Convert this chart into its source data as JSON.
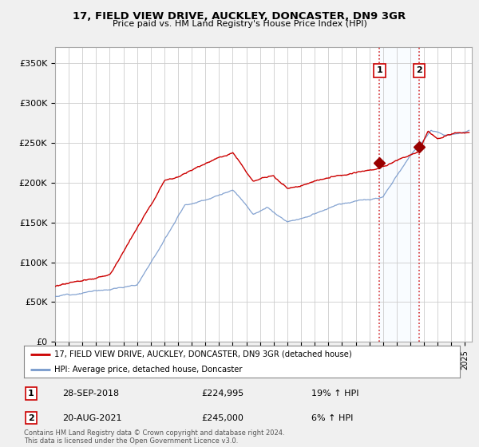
{
  "title": "17, FIELD VIEW DRIVE, AUCKLEY, DONCASTER, DN9 3GR",
  "subtitle": "Price paid vs. HM Land Registry's House Price Index (HPI)",
  "ylabel_ticks": [
    "£0",
    "£50K",
    "£100K",
    "£150K",
    "£200K",
    "£250K",
    "£300K",
    "£350K"
  ],
  "ytick_vals": [
    0,
    50000,
    100000,
    150000,
    200000,
    250000,
    300000,
    350000
  ],
  "ylim": [
    0,
    370000
  ],
  "sale1_x": 2018.75,
  "sale1_y": 224995,
  "sale1_label": "1",
  "sale1_date": "28-SEP-2018",
  "sale1_price": "£224,995",
  "sale1_pct": "19% ↑ HPI",
  "sale2_x": 2021.63,
  "sale2_y": 245000,
  "sale2_label": "2",
  "sale2_date": "20-AUG-2021",
  "sale2_price": "£245,000",
  "sale2_pct": "6% ↑ HPI",
  "legend_line1": "17, FIELD VIEW DRIVE, AUCKLEY, DONCASTER, DN9 3GR (detached house)",
  "legend_line2": "HPI: Average price, detached house, Doncaster",
  "footer": "Contains HM Land Registry data © Crown copyright and database right 2024.\nThis data is licensed under the Open Government Licence v3.0.",
  "line_color_red": "#cc0000",
  "line_color_blue": "#7799cc",
  "shade_color": "#ddeeff",
  "bg_color": "#f0f0f0",
  "plot_bg": "#ffffff",
  "grid_color": "#cccccc",
  "vline_color": "#cc0000",
  "marker_color_red": "#990000",
  "xmin": 1995.0,
  "xmax": 2025.5,
  "noise_scale": 2000,
  "seed": 12
}
